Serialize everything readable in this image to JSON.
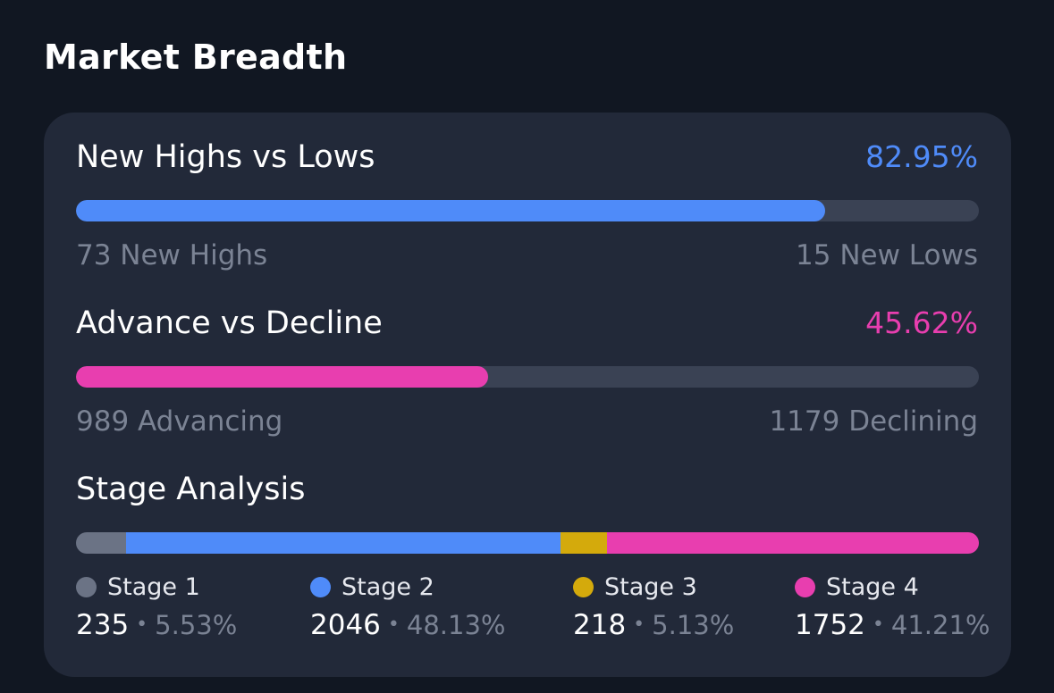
{
  "page": {
    "title": "Market Breadth"
  },
  "new_highs_lows": {
    "title": "New Highs vs Lows",
    "percent_label": "82.95%",
    "fill_fraction": 0.8295,
    "color": "#4f8bf9",
    "left_label": "73 New Highs",
    "right_label": "15 New Lows"
  },
  "advance_decline": {
    "title": "Advance vs Decline",
    "percent_label": "45.62%",
    "fill_fraction": 0.4562,
    "color": "#e83eaf",
    "left_label": "989 Advancing",
    "right_label": "1179 Declining"
  },
  "stage_analysis": {
    "title": "Stage Analysis",
    "stages": [
      {
        "label": "Stage 1",
        "count": "235",
        "percent": "5.53%",
        "fraction": 0.0553,
        "color": "#6b7385"
      },
      {
        "label": "Stage 2",
        "count": "2046",
        "percent": "48.13%",
        "fraction": 0.4813,
        "color": "#4f8bf9"
      },
      {
        "label": "Stage 3",
        "count": "218",
        "percent": "5.13%",
        "fraction": 0.0513,
        "color": "#d4aa0c"
      },
      {
        "label": "Stage 4",
        "count": "1752",
        "percent": "41.21%",
        "fraction": 0.4121,
        "color": "#e83eaf"
      }
    ],
    "separator": "•"
  },
  "colors": {
    "background": "#111722",
    "card": "#222939",
    "track": "#3a4254",
    "muted_text": "#7b8394"
  }
}
